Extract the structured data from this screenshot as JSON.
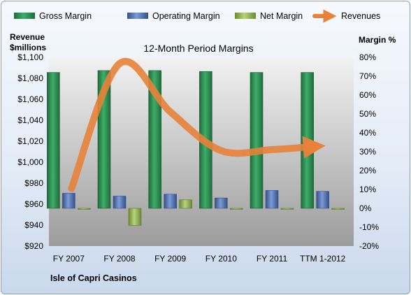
{
  "chart_data": {
    "type": "bar",
    "title": "12-Month Period Margins",
    "company": "Isle of Capri Casinos",
    "left_axis_label_line1": "Revenue",
    "left_axis_label_line2": "$millions",
    "right_axis_label": "Margin %",
    "categories": [
      "FY 2007",
      "FY 2008",
      "FY 2009",
      "FY 2010",
      "FY 2011",
      "TTM 1-2012"
    ],
    "left_axis": {
      "min": 920,
      "max": 1100,
      "step": 20,
      "prefix": "$"
    },
    "right_axis": {
      "min": -20,
      "max": 80,
      "step": 10,
      "suffix": "%"
    },
    "series": [
      {
        "name": "Gross Margin",
        "axis": "right",
        "kind": "bar",
        "color": "#2e8b57",
        "values": [
          72,
          73,
          73,
          72.5,
          72,
          72
        ]
      },
      {
        "name": "Operating Margin",
        "axis": "right",
        "kind": "bar",
        "color": "#5b7fc0",
        "values": [
          8,
          6.5,
          7.5,
          5.5,
          9.5,
          9
        ]
      },
      {
        "name": "Net Margin",
        "axis": "right",
        "kind": "bar",
        "color": "#9bbb59",
        "values": [
          -0.5,
          -9,
          4.5,
          -0.5,
          -0.5,
          -0.5
        ]
      },
      {
        "name": "Revenues",
        "axis": "left",
        "kind": "line",
        "color": "#e8823a",
        "values": [
          975,
          1094,
          1048,
          1011,
          1012,
          1015
        ]
      }
    ],
    "grid": false,
    "legend_position": "top"
  }
}
